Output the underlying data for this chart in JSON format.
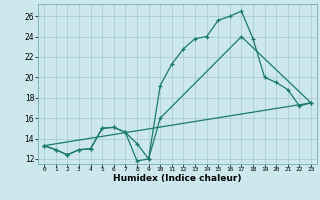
{
  "title": "",
  "xlabel": "Humidex (Indice chaleur)",
  "ylabel": "",
  "bg_color": "#cce8ec",
  "grid_color": "#aacdd4",
  "line_color": "#1a7a6a",
  "xlim": [
    -0.5,
    23.5
  ],
  "ylim": [
    11.5,
    27.2
  ],
  "xticks": [
    0,
    1,
    2,
    3,
    4,
    5,
    6,
    7,
    8,
    9,
    10,
    11,
    12,
    13,
    14,
    15,
    16,
    17,
    18,
    19,
    20,
    21,
    22,
    23
  ],
  "yticks": [
    12,
    14,
    16,
    18,
    20,
    22,
    24,
    26
  ],
  "line1_x": [
    0,
    1,
    2,
    3,
    4,
    5,
    6,
    7,
    8,
    9,
    10,
    11,
    12,
    13,
    14,
    15,
    16,
    17,
    18,
    19,
    20,
    21,
    22,
    23
  ],
  "line1_y": [
    13.3,
    12.9,
    12.4,
    12.9,
    13.0,
    15.0,
    15.1,
    14.6,
    13.5,
    12.0,
    19.2,
    21.3,
    22.8,
    23.8,
    24.0,
    25.6,
    26.0,
    26.5,
    23.8,
    20.0,
    19.5,
    18.8,
    17.2,
    17.5
  ],
  "line2_x": [
    0,
    1,
    2,
    3,
    4,
    5,
    6,
    7,
    8,
    9,
    10,
    17,
    23
  ],
  "line2_y": [
    13.3,
    12.9,
    12.4,
    12.9,
    13.0,
    15.0,
    15.1,
    14.6,
    11.8,
    12.0,
    16.0,
    24.0,
    17.5
  ],
  "line3_x": [
    0,
    23
  ],
  "line3_y": [
    13.3,
    17.5
  ]
}
